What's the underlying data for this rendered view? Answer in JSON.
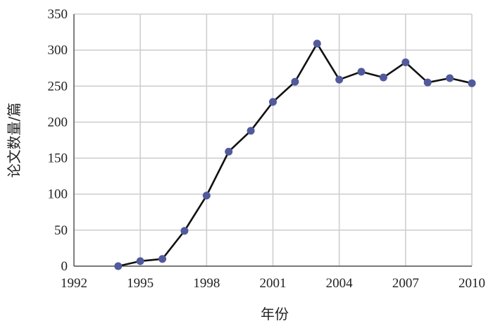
{
  "chart_data": {
    "type": "line",
    "title": "",
    "xlabel": "年份",
    "ylabel": "论文数量/篇",
    "xlim": [
      1992,
      2010
    ],
    "ylim": [
      0,
      350
    ],
    "x_ticks": [
      "1992",
      "1995",
      "1998",
      "2001",
      "2004",
      "2007",
      "2010"
    ],
    "x_tick_values": [
      1992,
      1995,
      1998,
      2001,
      2004,
      2007,
      2010
    ],
    "y_ticks": [
      "0",
      "50",
      "100",
      "150",
      "200",
      "250",
      "300",
      "350"
    ],
    "y_tick_values": [
      0,
      50,
      100,
      150,
      200,
      250,
      300,
      350
    ],
    "grid": true,
    "legend": "none",
    "series": [
      {
        "x": [
          1994,
          1995,
          1996,
          1997,
          1998,
          1999,
          2000,
          2001,
          2002,
          2003,
          2004,
          2005,
          2006,
          2007,
          2008,
          2009,
          2010
        ],
        "values": [
          0,
          7,
          10,
          49,
          98,
          159,
          188,
          228,
          256,
          309,
          259,
          270,
          262,
          283,
          255,
          261,
          254
        ],
        "line_color": "#111111",
        "marker_color": "#525a9c"
      }
    ]
  }
}
